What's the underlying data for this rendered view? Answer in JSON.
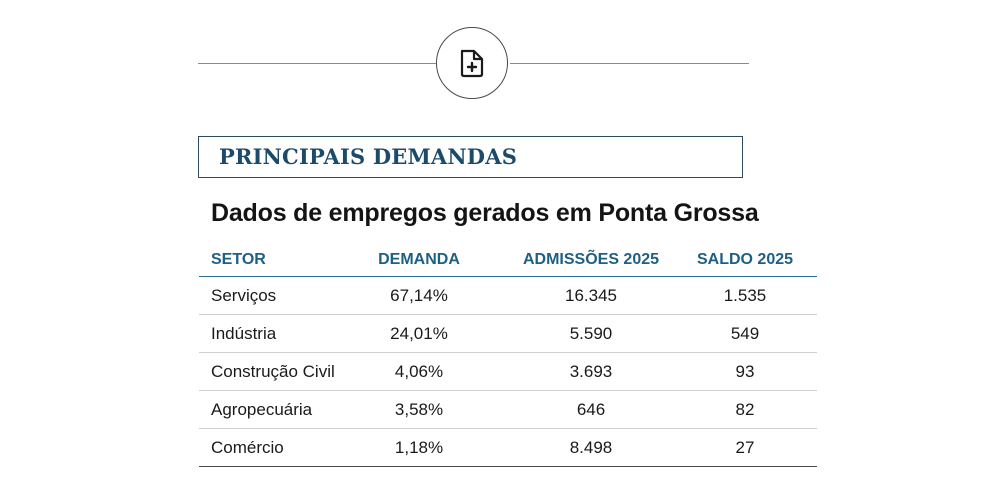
{
  "header": {
    "icon": "document-plus-icon"
  },
  "section": {
    "title": "PRINCIPAIS DEMANDAS"
  },
  "table": {
    "title": "Dados de empregos gerados em Ponta Grossa",
    "columns": [
      "SETOR",
      "DEMANDA",
      "ADMISSÕES 2025",
      "SALDO 2025"
    ],
    "rows": [
      [
        "Serviços",
        "67,14%",
        "16.345",
        "1.535"
      ],
      [
        "Indústria",
        "24,01%",
        "5.590",
        "549"
      ],
      [
        "Construção Civil",
        "4,06%",
        "3.693",
        "93"
      ],
      [
        "Agropecuária",
        "3,58%",
        "646",
        "82"
      ],
      [
        "Comércio",
        "1,18%",
        "8.498",
        "27"
      ]
    ]
  },
  "colors": {
    "accent": "#1b4a6b",
    "header_text": "#1e5f86",
    "rule": "#2a6d8f"
  }
}
